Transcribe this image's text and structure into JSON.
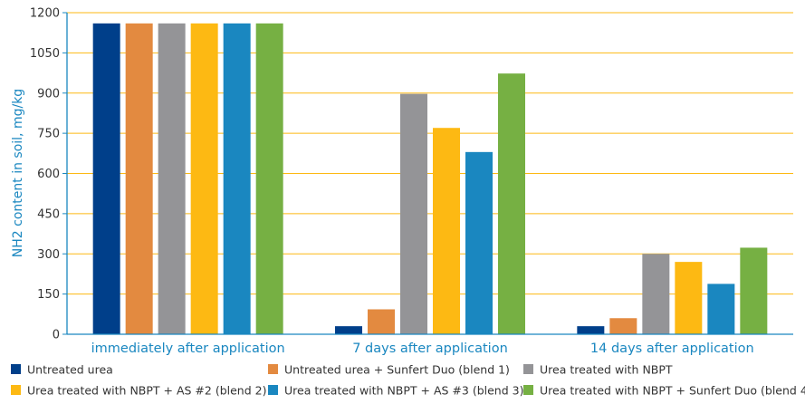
{
  "chart_data": {
    "type": "bar",
    "title": "",
    "xlabel": "",
    "ylabel": "NH2 content in soil, mg/kg",
    "ylim": [
      0,
      1200
    ],
    "yticks": [
      0,
      150,
      300,
      450,
      600,
      750,
      900,
      1050,
      1200
    ],
    "grid": true,
    "legend_position": "bottom",
    "categories": [
      "immediately after application",
      "7 days after application",
      "14 days after application"
    ],
    "series": [
      {
        "name": "Untreated urea",
        "color": "#003f8a",
        "values": [
          1160,
          30,
          30
        ]
      },
      {
        "name": "Untreated urea + Sunfert Duo (blend 1)",
        "color": "#e38a40",
        "values": [
          1160,
          93,
          60
        ]
      },
      {
        "name": "Urea treated with NBPT",
        "color": "#949497",
        "values": [
          1160,
          897,
          300
        ]
      },
      {
        "name": "Urea treated with NBPT + AS #2 (blend 2)",
        "color": "#fdb913",
        "values": [
          1160,
          770,
          270
        ]
      },
      {
        "name": "Urea treated with NBPT + AS #3 (blend 3)",
        "color": "#1a87c0",
        "values": [
          1160,
          680,
          188
        ]
      },
      {
        "name": "Urea treated with NBPT + Sunfert Duo (blend 4)",
        "color": "#76b043",
        "values": [
          1160,
          973,
          323
        ]
      }
    ]
  },
  "colors": {
    "gridline": "#fdb913",
    "axis": "#1a87c0",
    "category_text": "#1a87c0"
  }
}
